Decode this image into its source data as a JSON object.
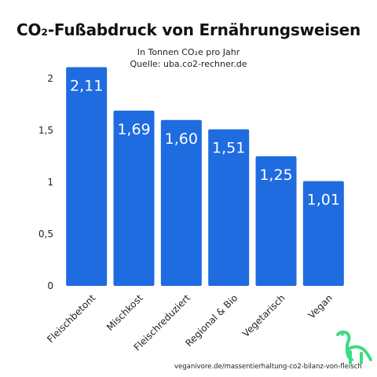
{
  "header": {
    "title": "CO₂-Fußabdruck von Ernährungsweisen",
    "subtitle": "In Tonnen CO₂e pro Jahr",
    "source": "Quelle: uba.co2-rechner.de"
  },
  "footer": {
    "url": "veganivore.de/massentierhaltung-co2-bilanz-von-fleisch"
  },
  "logo": {
    "icon": "dinosaur-icon",
    "color": "#3ddc84"
  },
  "chart_data": {
    "type": "bar",
    "categories": [
      "Fleischbetont",
      "Mischkost",
      "Fleischreduziert",
      "Regional & Bio",
      "Vegetarisch",
      "Vegan"
    ],
    "values": [
      2.11,
      1.69,
      1.6,
      1.51,
      1.25,
      1.01
    ],
    "data_labels": [
      "2,11",
      "1,69",
      "1,60",
      "1,51",
      "1,25",
      "1,01"
    ],
    "yticks": [
      0,
      0.5,
      1,
      1.5,
      2
    ],
    "ytick_labels": [
      "0",
      "0,5",
      "1",
      "1,5",
      "2"
    ],
    "ylim": [
      0,
      2.2
    ],
    "bar_color": "#1f6be0",
    "label_color": "#ffffff",
    "grid": false
  }
}
